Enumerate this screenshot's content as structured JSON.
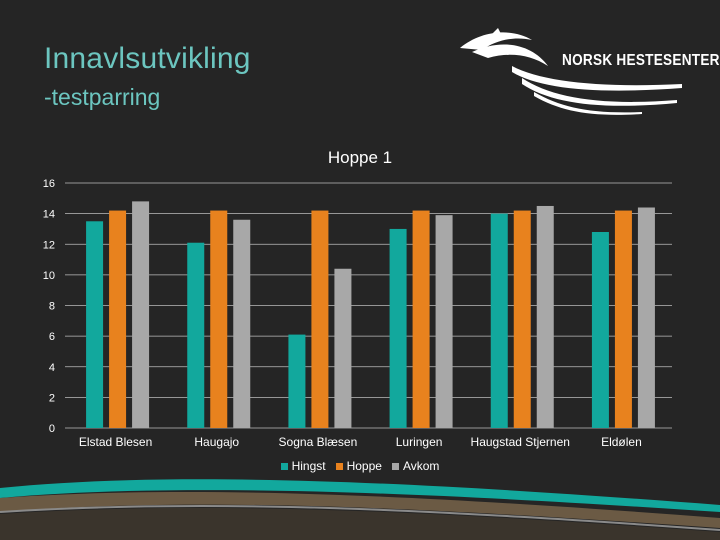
{
  "slide": {
    "title": "Innavlsutvikling",
    "subtitle": "-testparring",
    "logo_text": "NORSK HESTESENTER"
  },
  "colors": {
    "background": "#252525",
    "title": "#6cc6c0",
    "hingst": "#12a89d",
    "hoppe": "#e8821e",
    "avkom": "#a8a8a8"
  },
  "chart_data": {
    "type": "bar",
    "title": "Hoppe 1",
    "categories": [
      "Elstad Blesen",
      "Haugajo",
      "Sogna Blæsen",
      "Luringen",
      "Haugstad Stjernen",
      "Eldølen"
    ],
    "series": [
      {
        "name": "Hingst",
        "values": [
          13.5,
          12.1,
          6.1,
          13.0,
          14.0,
          12.8
        ]
      },
      {
        "name": "Hoppe",
        "values": [
          14.2,
          14.2,
          14.2,
          14.2,
          14.2,
          14.2
        ]
      },
      {
        "name": "Avkom",
        "values": [
          14.8,
          13.6,
          10.4,
          13.9,
          14.5,
          14.4
        ]
      }
    ],
    "ylim": [
      0,
      16
    ],
    "yticks": [
      "0",
      "2",
      "4",
      "6",
      "8",
      "10",
      "12",
      "14",
      "16"
    ],
    "grid": true,
    "legend": "bottom"
  }
}
